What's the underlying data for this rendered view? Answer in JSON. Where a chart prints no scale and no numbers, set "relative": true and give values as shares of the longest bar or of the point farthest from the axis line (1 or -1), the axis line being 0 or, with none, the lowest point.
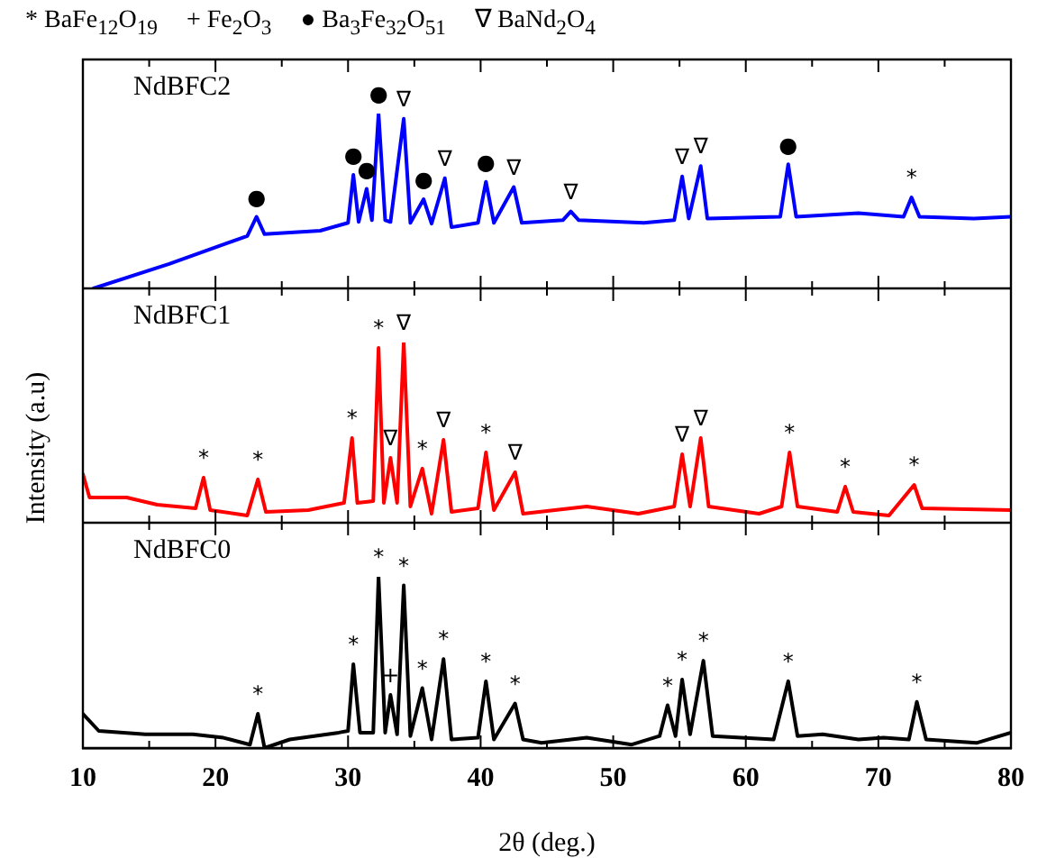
{
  "chart_data": [
    {
      "type": "line",
      "annotations": [
        "* BaFe$_{12}$O$_{19}$",
        "+ Fe$_{2}$O$_{3}$",
        "● Ba$_{3}$Fe$_{32}$O$_{51}$",
        "∇ BaNd$_{2}$O$_{4}$",
        {
          "text": "●",
          "x": 23.1,
          "y": 0.41
        },
        {
          "text": "●",
          "x": 30.4,
          "y": 0.65
        },
        {
          "text": "●",
          "x": 31.4,
          "y": 0.57
        },
        {
          "text": "●",
          "x": 32.3,
          "y": 1.0
        },
        {
          "text": "∇",
          "x": 34.2,
          "y": 0.97
        },
        {
          "text": "●",
          "x": 35.7,
          "y": 0.51
        },
        {
          "text": "∇",
          "x": 37.3,
          "y": 0.63
        },
        {
          "text": "●",
          "x": 40.4,
          "y": 0.61
        },
        {
          "text": "∇",
          "x": 42.5,
          "y": 0.58
        },
        {
          "text": "∇",
          "x": 46.8,
          "y": 0.44
        },
        {
          "text": "∇",
          "x": 55.2,
          "y": 0.64
        },
        {
          "text": "∇",
          "x": 56.6,
          "y": 0.7
        },
        {
          "text": "●",
          "x": 63.2,
          "y": 0.71
        },
        {
          "text": "*",
          "x": 72.5,
          "y": 0.52
        }
      ],
      "relative": true,
      "xlim": [
        10,
        80
      ],
      "xticks": [
        10,
        {
          "value": 15,
          "label": null
        },
        20,
        {
          "value": 25,
          "label": null
        },
        30,
        {
          "value": 35,
          "label": null
        },
        40,
        {
          "value": 45,
          "label": null
        },
        50,
        {
          "value": 55,
          "label": null
        },
        60,
        {
          "value": 65,
          "label": null
        },
        70,
        {
          "value": 75,
          "label": null
        },
        80
      ],
      "tick_labels": false,
      "marker": "none",
      "series": [
        {
          "name": "NdBFC2",
          "color": "#0000ff",
          "x": [
            10.8,
            16.5,
            22.4,
            23.1,
            23.7,
            27.9,
            30.0,
            30.4,
            30.8,
            31.4,
            31.8,
            32.3,
            32.8,
            33.2,
            34.2,
            34.7,
            35.7,
            36.3,
            37.3,
            37.8,
            39.8,
            40.4,
            41.0,
            42.5,
            43.1,
            46.2,
            46.8,
            47.4,
            52.3,
            54.6,
            55.2,
            55.7,
            56.6,
            57.1,
            62.6,
            63.2,
            63.8,
            68.5,
            71.9,
            72.5,
            73.1,
            77.2,
            80
          ],
          "values": [
            0,
            0.14,
            0.3,
            0.41,
            0.31,
            0.33,
            0.375,
            0.65,
            0.38,
            0.57,
            0.39,
            1.0,
            0.39,
            0.38,
            0.97,
            0.375,
            0.51,
            0.37,
            0.63,
            0.35,
            0.375,
            0.61,
            0.375,
            0.58,
            0.375,
            0.39,
            0.44,
            0.39,
            0.375,
            0.39,
            0.64,
            0.4,
            0.7,
            0.4,
            0.41,
            0.71,
            0.41,
            0.43,
            0.41,
            0.52,
            0.41,
            0.4,
            0.41
          ]
        }
      ]
    },
    {
      "type": "line",
      "ylabel": "Intensity (a.u)",
      "annotations": [
        {
          "text": "*",
          "x": 19.1,
          "y": 0.25
        },
        {
          "text": "*",
          "x": 23.2,
          "y": 0.24
        },
        {
          "text": "*",
          "x": 30.3,
          "y": 0.47
        },
        {
          "text": "*",
          "x": 32.3,
          "y": 0.97
        },
        {
          "text": "∇",
          "x": 33.2,
          "y": 0.36
        },
        {
          "text": "∇",
          "x": 34.2,
          "y": 1.0
        },
        {
          "text": "*",
          "x": 35.6,
          "y": 0.3
        },
        {
          "text": "∇",
          "x": 37.2,
          "y": 0.46
        },
        {
          "text": "*",
          "x": 40.4,
          "y": 0.39
        },
        {
          "text": "∇",
          "x": 42.6,
          "y": 0.28
        },
        {
          "text": "∇",
          "x": 55.2,
          "y": 0.38
        },
        {
          "text": "∇",
          "x": 56.6,
          "y": 0.47
        },
        {
          "text": "*",
          "x": 63.3,
          "y": 0.39
        },
        {
          "text": "*",
          "x": 67.5,
          "y": 0.2
        },
        {
          "text": "*",
          "x": 72.7,
          "y": 0.21
        }
      ],
      "relative": true,
      "xlim": [
        10,
        80
      ],
      "xticks": [
        10,
        {
          "value": 15,
          "label": null
        },
        20,
        {
          "value": 25,
          "label": null
        },
        30,
        {
          "value": 35,
          "label": null
        },
        40,
        {
          "value": 45,
          "label": null
        },
        50,
        {
          "value": 55,
          "label": null
        },
        60,
        {
          "value": 65,
          "label": null
        },
        70,
        {
          "value": 75,
          "label": null
        },
        80
      ],
      "tick_labels": false,
      "marker": "none",
      "series": [
        {
          "name": "NdBFC1",
          "color": "#ff0000",
          "x": [
            10,
            10.5,
            13.3,
            15.6,
            18.5,
            19.1,
            19.6,
            22.4,
            23.2,
            23.8,
            27.0,
            29.7,
            30.3,
            30.7,
            31.9,
            32.3,
            32.7,
            33.2,
            33.7,
            34.2,
            34.7,
            35.6,
            36.3,
            37.2,
            37.8,
            39.8,
            40.4,
            41.0,
            42.6,
            43.2,
            48.0,
            51.9,
            54.6,
            55.2,
            55.8,
            56.6,
            57.2,
            61.0,
            62.7,
            63.3,
            63.9,
            66.9,
            67.5,
            68.1,
            70.8,
            72.7,
            73.3,
            80
          ],
          "values": [
            0.27,
            0.14,
            0.14,
            0.1,
            0.08,
            0.25,
            0.07,
            0.04,
            0.24,
            0.06,
            0.07,
            0.11,
            0.47,
            0.11,
            0.12,
            0.97,
            0.11,
            0.36,
            0.11,
            1.0,
            0.09,
            0.3,
            0.05,
            0.46,
            0.06,
            0.08,
            0.39,
            0.07,
            0.28,
            0.05,
            0.09,
            0.05,
            0.09,
            0.38,
            0.09,
            0.47,
            0.09,
            0.05,
            0.09,
            0.39,
            0.09,
            0.06,
            0.2,
            0.06,
            0.04,
            0.21,
            0.08,
            0.07
          ]
        }
      ]
    },
    {
      "type": "line",
      "xlabel": "2θ (deg.)",
      "annotations": [
        {
          "text": "*",
          "x": 23.2,
          "y": 0.2
        },
        {
          "text": "*",
          "x": 30.4,
          "y": 0.49
        },
        {
          "text": "*",
          "x": 32.3,
          "y": 1.0
        },
        {
          "text": "+",
          "x": 33.2,
          "y": 0.31
        },
        {
          "text": "*",
          "x": 34.2,
          "y": 0.95
        },
        {
          "text": "*",
          "x": 35.6,
          "y": 0.35
        },
        {
          "text": "*",
          "x": 37.2,
          "y": 0.52
        },
        {
          "text": "*",
          "x": 40.4,
          "y": 0.39
        },
        {
          "text": "*",
          "x": 42.6,
          "y": 0.26
        },
        {
          "text": "*",
          "x": 54.1,
          "y": 0.25
        },
        {
          "text": "*",
          "x": 55.2,
          "y": 0.4
        },
        {
          "text": "*",
          "x": 56.8,
          "y": 0.51
        },
        {
          "text": "*",
          "x": 63.2,
          "y": 0.39
        },
        {
          "text": "*",
          "x": 72.9,
          "y": 0.27
        }
      ],
      "relative": true,
      "xlim": [
        10,
        80
      ],
      "xticks": [
        10,
        {
          "value": 15,
          "label": null
        },
        20,
        {
          "value": 25,
          "label": null
        },
        30,
        {
          "value": 35,
          "label": null
        },
        40,
        {
          "value": 45,
          "label": null
        },
        50,
        {
          "value": 55,
          "label": null
        },
        60,
        {
          "value": 65,
          "label": null
        },
        70,
        {
          "value": 75,
          "label": null
        },
        80
      ],
      "tick_labels": "x",
      "marker": "none",
      "series": [
        {
          "name": "NdBFC0",
          "color": "#000000",
          "x": [
            10,
            11.2,
            14.7,
            18.3,
            20.6,
            22.6,
            23.2,
            23.7,
            25.6,
            29.3,
            30.0,
            30.4,
            30.9,
            31.9,
            32.3,
            32.8,
            33.2,
            33.7,
            34.2,
            34.7,
            35.6,
            36.3,
            37.2,
            37.8,
            39.8,
            40.4,
            41.0,
            42.6,
            43.2,
            44.6,
            48.0,
            51.4,
            53.5,
            54.1,
            54.7,
            55.2,
            55.8,
            56.8,
            57.5,
            62.1,
            63.2,
            63.9,
            65.8,
            68.5,
            70.4,
            72.3,
            72.9,
            73.6,
            77.4,
            80
          ],
          "values": [
            0.2,
            0.1,
            0.08,
            0.08,
            0.06,
            0.02,
            0.2,
            0,
            0.05,
            0.09,
            0.1,
            0.49,
            0.09,
            0.09,
            1.0,
            0.09,
            0.31,
            0.08,
            0.95,
            0.07,
            0.35,
            0.05,
            0.52,
            0.05,
            0.06,
            0.39,
            0.05,
            0.26,
            0.05,
            0.03,
            0.06,
            0.02,
            0.07,
            0.25,
            0.07,
            0.4,
            0.08,
            0.51,
            0.07,
            0.05,
            0.39,
            0.07,
            0.08,
            0.05,
            0.06,
            0.05,
            0.27,
            0.05,
            0.03,
            0.09
          ]
        }
      ]
    }
  ]
}
